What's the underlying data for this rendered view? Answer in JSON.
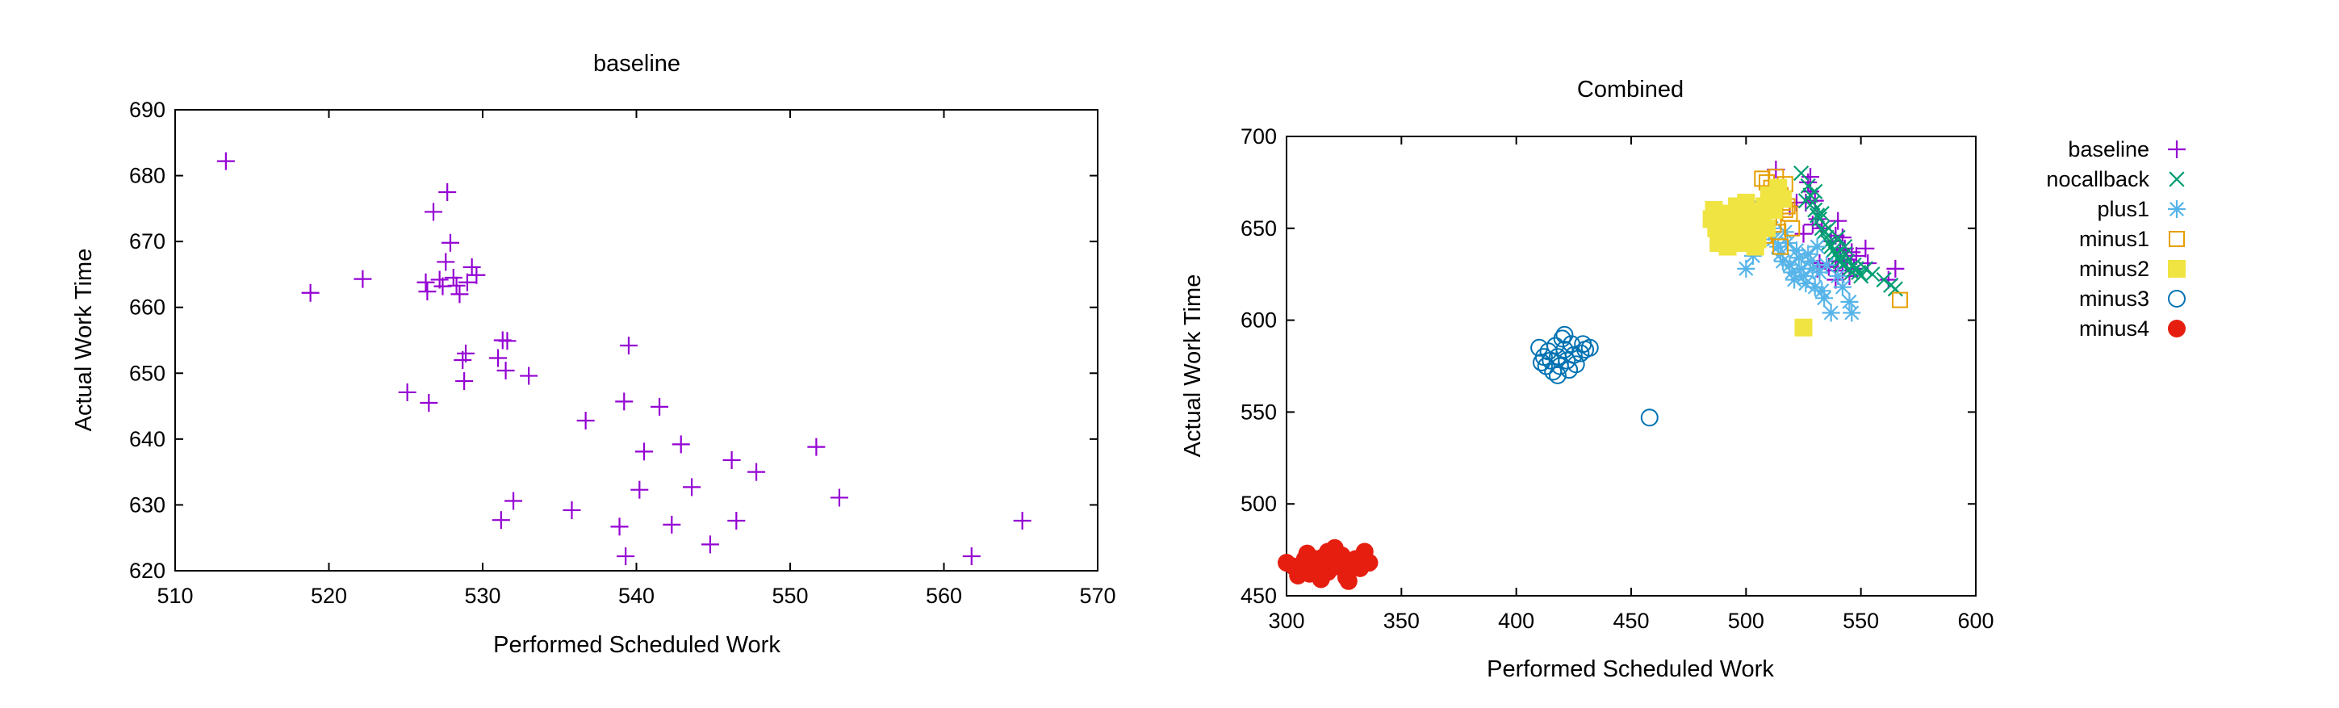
{
  "colors": {
    "baseline": "#9400d3",
    "nocallback": "#009e73",
    "plus1": "#56b4e9",
    "minus1": "#e69f00",
    "minus2": "#f0e442",
    "minus3": "#0072b2",
    "minus4": "#e51e10"
  },
  "chart_data": [
    {
      "type": "scatter",
      "title": "baseline",
      "xlabel": "Performed Scheduled Work",
      "ylabel": "Actual Work Time",
      "xlim": [
        510,
        570
      ],
      "ylim": [
        620,
        690
      ],
      "xticks": [
        510,
        520,
        530,
        540,
        550,
        560,
        570
      ],
      "yticks": [
        620,
        630,
        640,
        650,
        660,
        670,
        680,
        690
      ],
      "grid": false,
      "series": [
        {
          "marker": "plus",
          "color": "#9400d3",
          "points": [
            [
              513.3,
              682.2
            ],
            [
              518.8,
              662.2
            ],
            [
              522.2,
              664.3
            ],
            [
              525.1,
              647.1
            ],
            [
              526.3,
              663.8
            ],
            [
              526.5,
              645.5
            ],
            [
              526.4,
              662.4
            ],
            [
              526.8,
              674.5
            ],
            [
              527.2,
              664.2
            ],
            [
              527.4,
              663.2
            ],
            [
              527.7,
              677.5
            ],
            [
              527.6,
              666.9
            ],
            [
              527.9,
              669.8
            ],
            [
              528.1,
              664.5
            ],
            [
              528.3,
              663.3
            ],
            [
              528.5,
              662.0
            ],
            [
              528.7,
              652.0
            ],
            [
              528.9,
              653.0
            ],
            [
              528.8,
              648.8
            ],
            [
              529.0,
              663.8
            ],
            [
              529.3,
              666.1
            ],
            [
              529.6,
              664.9
            ],
            [
              531.0,
              652.3
            ],
            [
              531.2,
              627.7
            ],
            [
              531.3,
              655.0
            ],
            [
              531.5,
              650.4
            ],
            [
              531.6,
              654.9
            ],
            [
              532.0,
              630.6
            ],
            [
              533.0,
              649.6
            ],
            [
              535.8,
              629.2
            ],
            [
              536.7,
              642.8
            ],
            [
              538.9,
              626.7
            ],
            [
              539.2,
              645.7
            ],
            [
              539.3,
              622.2
            ],
            [
              539.5,
              654.2
            ],
            [
              540.2,
              632.3
            ],
            [
              540.5,
              638.1
            ],
            [
              541.5,
              644.9
            ],
            [
              542.3,
              627.0
            ],
            [
              542.9,
              639.2
            ],
            [
              543.6,
              632.7
            ],
            [
              544.8,
              624.0
            ],
            [
              546.2,
              636.8
            ],
            [
              546.5,
              627.6
            ],
            [
              547.8,
              635.0
            ],
            [
              551.7,
              638.8
            ],
            [
              553.2,
              631.1
            ],
            [
              561.8,
              622.2
            ],
            [
              565.1,
              627.6
            ]
          ]
        }
      ]
    },
    {
      "type": "scatter",
      "title": "Combined",
      "xlabel": "Performed Scheduled Work",
      "ylabel": "Actual Work Time",
      "xlim": [
        300,
        600
      ],
      "ylim": [
        450,
        700
      ],
      "xticks": [
        300,
        350,
        400,
        450,
        500,
        550,
        600
      ],
      "yticks": [
        450,
        500,
        550,
        600,
        650,
        700
      ],
      "grid": false,
      "legend": "right",
      "series": [
        {
          "name": "baseline",
          "marker": "plus",
          "color": "#9400d3",
          "points": [
            [
              513,
              682
            ],
            [
              519,
              662
            ],
            [
              522,
              664
            ],
            [
              525,
              647
            ],
            [
              526,
              664
            ],
            [
              527,
              675
            ],
            [
              528,
              678
            ],
            [
              528,
              670
            ],
            [
              529,
              652
            ],
            [
              530,
              665
            ],
            [
              531,
              655
            ],
            [
              533,
              650
            ],
            [
              537,
              643
            ],
            [
              539,
              646
            ],
            [
              540,
              654
            ],
            [
              541,
              638
            ],
            [
              542,
              645
            ],
            [
              543,
              639
            ],
            [
              546,
              637
            ],
            [
              547,
              628
            ],
            [
              548,
              635
            ],
            [
              552,
              639
            ],
            [
              553,
              631
            ],
            [
              562,
              622
            ],
            [
              565,
              628
            ],
            [
              531,
              628
            ],
            [
              532,
              631
            ],
            [
              536,
              629
            ],
            [
              539,
              627
            ],
            [
              539,
              622
            ],
            [
              540,
              632
            ],
            [
              542,
              627
            ],
            [
              544,
              633
            ],
            [
              545,
              624
            ]
          ]
        },
        {
          "name": "nocallback",
          "marker": "cross",
          "color": "#009e73",
          "points": [
            [
              524,
              680
            ],
            [
              527,
              673
            ],
            [
              528,
              668
            ],
            [
              529,
              664
            ],
            [
              530,
              660
            ],
            [
              531,
              657
            ],
            [
              532,
              655
            ],
            [
              533,
              650
            ],
            [
              534,
              648
            ],
            [
              535,
              645
            ],
            [
              536,
              642
            ],
            [
              537,
              640
            ],
            [
              538,
              638
            ],
            [
              539,
              636
            ],
            [
              540,
              634
            ],
            [
              541,
              632
            ],
            [
              542,
              630
            ],
            [
              543,
              636
            ],
            [
              544,
              632
            ],
            [
              545,
              628
            ],
            [
              546,
              626
            ],
            [
              547,
              630
            ],
            [
              548,
              628
            ],
            [
              549,
              626
            ],
            [
              550,
              624
            ],
            [
              552,
              628
            ],
            [
              555,
              625
            ],
            [
              560,
              622
            ],
            [
              563,
              619
            ],
            [
              565,
              617
            ],
            [
              526,
              665
            ],
            [
              530,
              670
            ],
            [
              533,
              658
            ],
            [
              536,
              650
            ],
            [
              540,
              645
            ],
            [
              543,
              640
            ]
          ]
        },
        {
          "name": "plus1",
          "marker": "star",
          "color": "#56b4e9",
          "points": [
            [
              506,
              662
            ],
            [
              508,
              654
            ],
            [
              510,
              648
            ],
            [
              512,
              644
            ],
            [
              514,
              640
            ],
            [
              515,
              636
            ],
            [
              516,
              632
            ],
            [
              517,
              648
            ],
            [
              518,
              642
            ],
            [
              519,
              630
            ],
            [
              520,
              626
            ],
            [
              521,
              622
            ],
            [
              522,
              638
            ],
            [
              523,
              634
            ],
            [
              524,
              628
            ],
            [
              525,
              624
            ],
            [
              526,
              620
            ],
            [
              527,
              636
            ],
            [
              528,
              632
            ],
            [
              529,
              628
            ],
            [
              530,
              618
            ],
            [
              531,
              640
            ],
            [
              532,
              626
            ],
            [
              533,
              616
            ],
            [
              534,
              612
            ],
            [
              535,
              630
            ],
            [
              537,
              604
            ],
            [
              540,
              624
            ],
            [
              542,
              618
            ],
            [
              545,
              610
            ],
            [
              546,
              604
            ],
            [
              500,
              628
            ],
            [
              503,
              635
            ],
            [
              511,
              650
            ]
          ]
        },
        {
          "name": "minus1",
          "marker": "square-open",
          "color": "#e69f00",
          "points": [
            [
              507,
              677
            ],
            [
              509,
              675
            ],
            [
              511,
              672
            ],
            [
              513,
              670
            ],
            [
              515,
              668
            ],
            [
              516,
              664
            ],
            [
              517,
              660
            ],
            [
              518,
              662
            ],
            [
              510,
              656
            ],
            [
              512,
              652
            ],
            [
              514,
              648
            ],
            [
              508,
              646
            ],
            [
              505,
              644
            ],
            [
              515,
              640
            ],
            [
              519,
              658
            ],
            [
              520,
              650
            ],
            [
              511,
              664
            ],
            [
              506,
              660
            ],
            [
              567,
              611
            ],
            [
              513,
              678
            ],
            [
              517,
              674
            ]
          ]
        },
        {
          "name": "minus2",
          "marker": "square-filled",
          "color": "#f0e442",
          "points": [
            [
              485,
              655
            ],
            [
              487,
              650
            ],
            [
              489,
              645
            ],
            [
              491,
              658
            ],
            [
              493,
              652
            ],
            [
              495,
              647
            ],
            [
              497,
              642
            ],
            [
              499,
              660
            ],
            [
              501,
              654
            ],
            [
              503,
              649
            ],
            [
              505,
              644
            ],
            [
              507,
              656
            ],
            [
              509,
              650
            ],
            [
              488,
              642
            ],
            [
              492,
              640
            ],
            [
              496,
              662
            ],
            [
              500,
              664
            ],
            [
              504,
              640
            ],
            [
              498,
              650
            ],
            [
              494,
              655
            ],
            [
              490,
              648
            ],
            [
              486,
              660
            ],
            [
              502,
              658
            ],
            [
              508,
              662
            ],
            [
              506,
              650
            ],
            [
              525,
              596
            ],
            [
              510,
              668
            ],
            [
              512,
              660
            ],
            [
              514,
              672
            ],
            [
              516,
              666
            ]
          ]
        },
        {
          "name": "minus3",
          "marker": "circle-open",
          "color": "#0072b2",
          "points": [
            [
              410,
              585
            ],
            [
              412,
              580
            ],
            [
              413,
              575
            ],
            [
              414,
              583
            ],
            [
              415,
              578
            ],
            [
              416,
              572
            ],
            [
              417,
              586
            ],
            [
              418,
              580
            ],
            [
              419,
              575
            ],
            [
              420,
              590
            ],
            [
              421,
              584
            ],
            [
              422,
              578
            ],
            [
              423,
              573
            ],
            [
              424,
              587
            ],
            [
              425,
              581
            ],
            [
              426,
              576
            ],
            [
              428,
              582
            ],
            [
              429,
              587
            ],
            [
              430,
              584
            ],
            [
              432,
              585
            ],
            [
              411,
              577
            ],
            [
              418,
              570
            ],
            [
              421,
              592
            ],
            [
              458,
              547
            ]
          ]
        },
        {
          "name": "minus4",
          "marker": "circle-filled",
          "color": "#e51e10",
          "points": [
            [
              300,
              468
            ],
            [
              303,
              466
            ],
            [
              306,
              464
            ],
            [
              308,
              470
            ],
            [
              310,
              462
            ],
            [
              312,
              468
            ],
            [
              314,
              465
            ],
            [
              316,
              471
            ],
            [
              318,
              463
            ],
            [
              320,
              469
            ],
            [
              322,
              466
            ],
            [
              324,
              472
            ],
            [
              326,
              460
            ],
            [
              328,
              467
            ],
            [
              330,
              470
            ],
            [
              332,
              465
            ],
            [
              334,
              474
            ],
            [
              336,
              468
            ],
            [
              309,
              473
            ],
            [
              315,
              459
            ],
            [
              321,
              476
            ],
            [
              327,
              458
            ],
            [
              318,
              474
            ],
            [
              305,
              461
            ],
            [
              313,
              470
            ],
            [
              325,
              469
            ]
          ]
        }
      ]
    }
  ]
}
